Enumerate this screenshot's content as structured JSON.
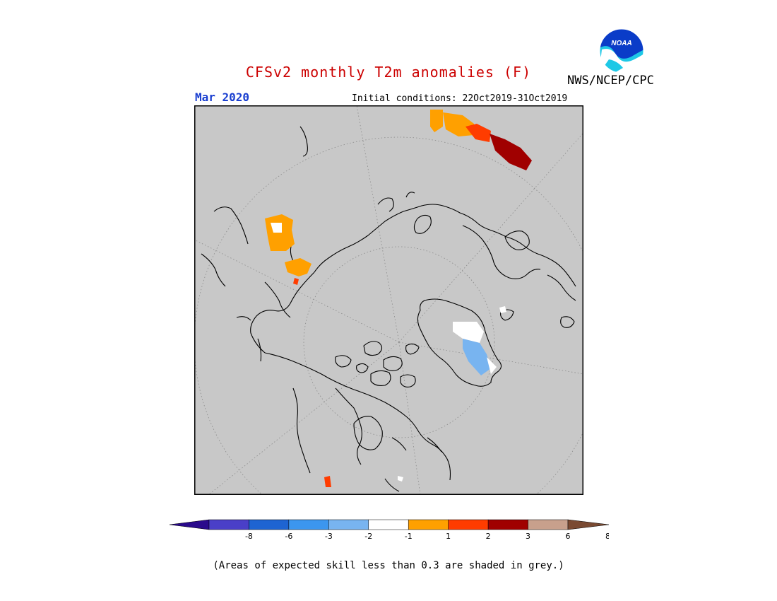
{
  "header": {
    "title": "CFSv2 monthly T2m anomalies (F)",
    "month": "Mar 2020",
    "initial_conditions": "Initial conditions: 22Oct2019-31Oct2019",
    "organization": "NWS/NCEP/CPC",
    "logo_text": "NOAA"
  },
  "colors": {
    "title": "#cc0000",
    "month": "#1a3fd0",
    "map_background": "#c8c8c8",
    "coastline": "#000000",
    "graticule": "#888888"
  },
  "legend": {
    "bins": [
      {
        "color": "#2a0a8c"
      },
      {
        "color": "#4a3fc8"
      },
      {
        "color": "#1e64d2"
      },
      {
        "color": "#3c96ef"
      },
      {
        "color": "#78b4f0"
      },
      {
        "color": "#ffffff"
      },
      {
        "color": "#ffa000"
      },
      {
        "color": "#ff3c00"
      },
      {
        "color": "#a00000"
      },
      {
        "color": "#c8a08c"
      },
      {
        "color": "#7a4a32"
      }
    ],
    "tick_labels": [
      "-8",
      "-6",
      "-3",
      "-2",
      "-1",
      "1",
      "2",
      "3",
      "6",
      "8"
    ]
  },
  "footnote": "(Areas of expected skill less than 0.3 are shaded in grey.)"
}
